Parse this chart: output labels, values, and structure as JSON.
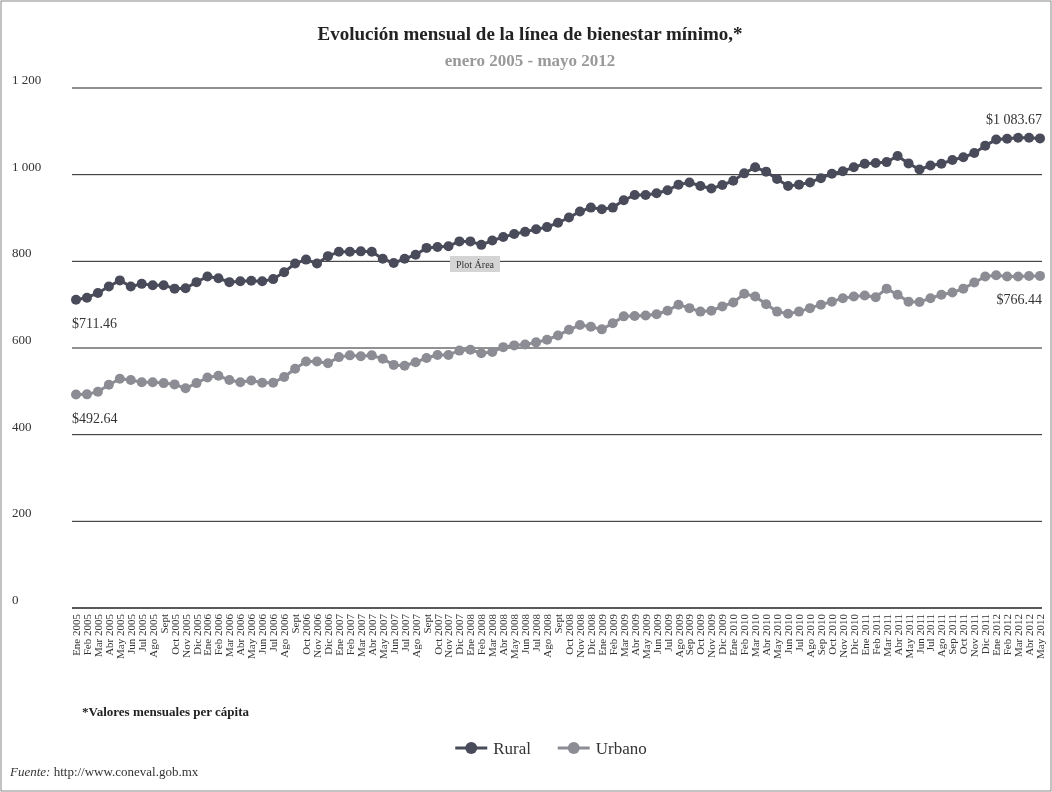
{
  "chart_data": {
    "type": "line",
    "title": "Evolución mensual de la línea de bienestar mínimo,*",
    "subtitle": "enero 2005 - mayo 2012",
    "categories": [
      "Ene 2005",
      "Feb 2005",
      "Mar 2005",
      "Abr 2005",
      "May 2005",
      "Jun 2005",
      "Jul 2005",
      "Ago 2005",
      "Sept",
      "Oct 2005",
      "Nov 2005",
      "Dic 2005",
      "Ene 2006",
      "Feb 2006",
      "Mar 2006",
      "Abr 2006",
      "May 2006",
      "Jun 2006",
      "Jul 2006",
      "Ago 2006",
      "Sept",
      "Oct 2006",
      "Nov 2006",
      "Dic 2006",
      "Ene 2007",
      "Feb 2007",
      "Mar 2007",
      "Abr 2007",
      "May 2007",
      "Jun 2007",
      "Jul 2007",
      "Ago 2007",
      "Sept",
      "Oct 2007",
      "Nov 2007",
      "Dic 2007",
      "Ene 2008",
      "Feb 2008",
      "Mar 2008",
      "Abr 2008",
      "May 2008",
      "Jun 2008",
      "Jul 2008",
      "Ago 2008",
      "Sept",
      "Oct 2008",
      "Nov 2008",
      "Dic 2008",
      "Ene 2009",
      "Feb 2009",
      "Mar 2009",
      "Abr 2009",
      "May 2009",
      "Jun 2009",
      "Jul 2009",
      "Ago 2009",
      "Sep 2009",
      "Oct 2009",
      "Nov 2009",
      "Dic 2009",
      "Ene 2010",
      "Feb 2010",
      "Mar 2010",
      "Abr 2010",
      "May 2010",
      "Jun 2010",
      "Jul 2010",
      "Ago 2010",
      "Sep 2010",
      "Oct 2010",
      "Nov 2010",
      "Dic 2010",
      "Ene 2011",
      "Feb 2011",
      "Mar 2011",
      "Abr 2011",
      "May 2011",
      "Jun 2011",
      "Jul 2011",
      "Ago 2011",
      "Sep 2011",
      "Oct 2011",
      "Nov 2011",
      "Dic 2011",
      "Ene 2012",
      "Feb 2012",
      "Mar 2012",
      "Abr 2012",
      "May 2012"
    ],
    "series": [
      {
        "name": "Rural",
        "color": "#4a4b5a",
        "values": [
          711.46,
          716,
          727,
          742,
          756,
          742,
          748,
          745,
          745,
          737,
          738,
          752,
          765,
          761,
          752,
          754,
          755,
          754,
          759,
          775,
          795,
          804,
          795,
          812,
          822,
          822,
          823,
          822,
          806,
          796,
          806,
          815,
          831,
          833,
          835,
          846,
          846,
          838,
          848,
          856,
          863,
          868,
          874,
          879,
          889,
          901,
          915,
          924,
          920,
          924,
          941,
          953,
          953,
          957,
          964,
          977,
          982,
          974,
          968,
          976,
          986,
          1003,
          1017,
          1007,
          990,
          974,
          977,
          982,
          992,
          1002,
          1008,
          1017,
          1025,
          1027,
          1029,
          1043,
          1026,
          1012,
          1021,
          1025,
          1034,
          1040,
          1050,
          1067,
          1081,
          1083,
          1085,
          1085,
          1083.67
        ],
        "value_labels": [
          "$711.46",
          null,
          null,
          null,
          null,
          null,
          null,
          null,
          null,
          null,
          null,
          null,
          null,
          null,
          null,
          null,
          null,
          null,
          null,
          null,
          null,
          null,
          null,
          null,
          null,
          null,
          null,
          null,
          null,
          null,
          null,
          null,
          null,
          null,
          null,
          null,
          null,
          null,
          null,
          null,
          null,
          null,
          null,
          null,
          null,
          null,
          null,
          null,
          null,
          null,
          null,
          null,
          null,
          null,
          null,
          null,
          null,
          null,
          null,
          null,
          null,
          null,
          null,
          null,
          null,
          null,
          null,
          null,
          null,
          null,
          null,
          null,
          null,
          null,
          null,
          null,
          null,
          null,
          null,
          null,
          null,
          null,
          null,
          null,
          null,
          null,
          null,
          null,
          "$1 083.67"
        ]
      },
      {
        "name": "Urbano",
        "color": "#8c8c95",
        "values": [
          492.64,
          493,
          499,
          515,
          529,
          526,
          521,
          521,
          519,
          516,
          507,
          519,
          532,
          536,
          526,
          521,
          525,
          520,
          520,
          533,
          552,
          569,
          569,
          565,
          579,
          583,
          581,
          583,
          575,
          561,
          559,
          567,
          577,
          584,
          584,
          594,
          596,
          588,
          591,
          602,
          606,
          608,
          613,
          619,
          629,
          642,
          653,
          649,
          643,
          657,
          673,
          674,
          675,
          678,
          686,
          700,
          692,
          684,
          686,
          696,
          705,
          725,
          719,
          701,
          684,
          679,
          684,
          692,
          700,
          707,
          715,
          719,
          721,
          717,
          737,
          723,
          707,
          706,
          715,
          723,
          728,
          737,
          751,
          765,
          768,
          765,
          765,
          766,
          766.44
        ],
        "value_labels": [
          "$492.64",
          null,
          null,
          null,
          null,
          null,
          null,
          null,
          null,
          null,
          null,
          null,
          null,
          null,
          null,
          null,
          null,
          null,
          null,
          null,
          null,
          null,
          null,
          null,
          null,
          null,
          null,
          null,
          null,
          null,
          null,
          null,
          null,
          null,
          null,
          null,
          null,
          null,
          null,
          null,
          null,
          null,
          null,
          null,
          null,
          null,
          null,
          null,
          null,
          null,
          null,
          null,
          null,
          null,
          null,
          null,
          null,
          null,
          null,
          null,
          null,
          null,
          null,
          null,
          null,
          null,
          null,
          null,
          null,
          null,
          null,
          null,
          null,
          null,
          null,
          null,
          null,
          null,
          null,
          null,
          null,
          null,
          null,
          null,
          null,
          null,
          null,
          null,
          "$766.44"
        ]
      }
    ],
    "ylim": [
      0,
      1200
    ],
    "yticks": [
      0,
      200,
      400,
      600,
      800,
      {
        "value": 1000,
        "label": "1 000"
      },
      {
        "value": 1200,
        "label": "1 200"
      }
    ],
    "grid": "y",
    "marker": "circle",
    "line_style": "solid",
    "legend": "bottom",
    "annotations": [
      "*Valores mensuales per cápita",
      "Fuente: http://www.coneval.gob.mx",
      "Plot Área"
    ]
  }
}
